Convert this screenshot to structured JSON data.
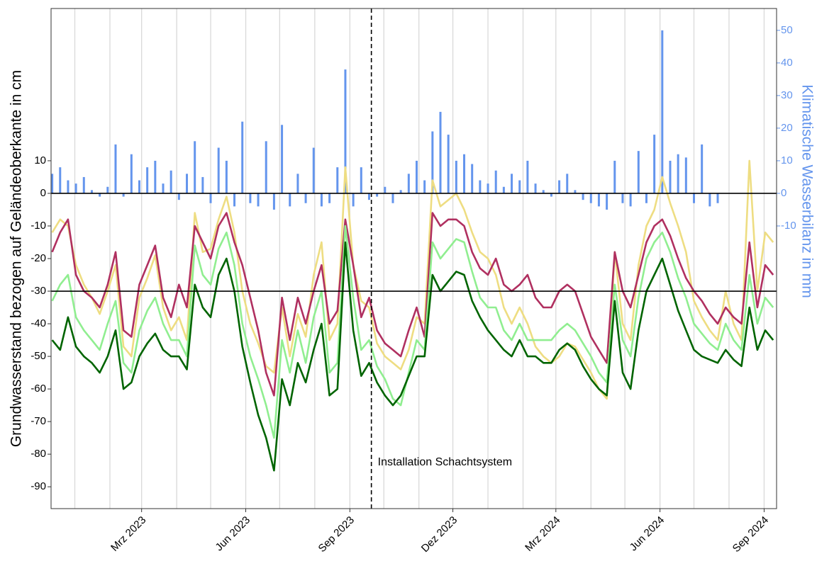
{
  "chart_data": {
    "type": "line",
    "ylabel": "Grundwasserstand bezogen auf Geländeoberkante in cm",
    "y2label": "Klimatische Wasserbilanz in mm",
    "xlim": [
      "2022-12-11",
      "2024-09-12"
    ],
    "ylim": [
      -96.7,
      56.7
    ],
    "y2lim": [
      -96.7,
      56.7
    ],
    "yticks": [
      -90,
      -80,
      -70,
      -60,
      -50,
      -40,
      -30,
      -20,
      -10,
      0,
      10
    ],
    "y2ticks": [
      -10,
      0,
      10,
      20,
      30,
      40,
      50
    ],
    "xticks": [
      {
        "value": "2023-03",
        "label": "Mrz 2023"
      },
      {
        "value": "2023-06",
        "label": "Jun 2023"
      },
      {
        "value": "2023-09",
        "label": "Sep 2023"
      },
      {
        "value": "2023-12",
        "label": "Dez 2023"
      },
      {
        "value": "2024-03",
        "label": "Mrz 2024"
      },
      {
        "value": "2024-06",
        "label": "Jun 2024"
      },
      {
        "value": "2024-09",
        "label": "Sep 2024"
      }
    ],
    "xminor": [
      "2023-01",
      "2023-02",
      "2023-04",
      "2023-05",
      "2023-07",
      "2023-08",
      "2023-10",
      "2023-11",
      "2024-01",
      "2024-02",
      "2024-04",
      "2024-05",
      "2024-07",
      "2024-08"
    ],
    "grid": true,
    "hlines": [
      0,
      -30
    ],
    "vline": {
      "x": "2023-09-20",
      "label": "Installation Schachtsystem"
    },
    "x": [
      "2022-12-12",
      "2022-12-19",
      "2022-12-26",
      "2023-01-02",
      "2023-01-09",
      "2023-01-16",
      "2023-01-23",
      "2023-01-30",
      "2023-02-06",
      "2023-02-13",
      "2023-02-20",
      "2023-02-27",
      "2023-03-06",
      "2023-03-13",
      "2023-03-20",
      "2023-03-27",
      "2023-04-03",
      "2023-04-10",
      "2023-04-17",
      "2023-04-24",
      "2023-05-01",
      "2023-05-08",
      "2023-05-15",
      "2023-05-22",
      "2023-05-29",
      "2023-06-05",
      "2023-06-12",
      "2023-06-19",
      "2023-06-26",
      "2023-07-03",
      "2023-07-10",
      "2023-07-17",
      "2023-07-24",
      "2023-07-31",
      "2023-08-07",
      "2023-08-14",
      "2023-08-21",
      "2023-08-28",
      "2023-09-04",
      "2023-09-11",
      "2023-09-18",
      "2023-09-25",
      "2023-10-02",
      "2023-10-09",
      "2023-10-16",
      "2023-10-23",
      "2023-10-30",
      "2023-11-06",
      "2023-11-13",
      "2023-11-20",
      "2023-11-27",
      "2023-12-04",
      "2023-12-11",
      "2023-12-18",
      "2023-12-25",
      "2024-01-01",
      "2024-01-08",
      "2024-01-15",
      "2024-01-22",
      "2024-01-29",
      "2024-02-05",
      "2024-02-12",
      "2024-02-19",
      "2024-02-26",
      "2024-03-04",
      "2024-03-11",
      "2024-03-18",
      "2024-03-25",
      "2024-04-01",
      "2024-04-08",
      "2024-04-15",
      "2024-04-22",
      "2024-04-29",
      "2024-05-06",
      "2024-05-13",
      "2024-05-20",
      "2024-05-27",
      "2024-06-03",
      "2024-06-10",
      "2024-06-17",
      "2024-06-24",
      "2024-07-01",
      "2024-07-08",
      "2024-07-15",
      "2024-07-22",
      "2024-07-29",
      "2024-08-05",
      "2024-08-12",
      "2024-08-19",
      "2024-08-26",
      "2024-09-02",
      "2024-09-09"
    ],
    "series": [
      {
        "color": "#EEDD82",
        "values": [
          -12,
          -8,
          -10,
          -22,
          -28,
          -32,
          -37,
          -30,
          -22,
          -47,
          -50,
          -32,
          -26,
          -19,
          -35,
          -42,
          -38,
          -45,
          -6,
          -18,
          -17,
          -8,
          -1,
          -12,
          -30,
          -40,
          -46,
          -53,
          -55,
          -35,
          -50,
          -37,
          -44,
          -25,
          -15,
          -45,
          -40,
          8,
          -22,
          -33,
          -35,
          -46,
          -50,
          -52,
          -54,
          -48,
          -38,
          -40,
          4,
          -4,
          -2,
          0,
          -5,
          -12,
          -18,
          -20,
          -25,
          -35,
          -40,
          -35,
          -40,
          -47,
          -50,
          -52,
          -50,
          -46,
          -47,
          -51,
          -55,
          -60,
          -63,
          -18,
          -40,
          -45,
          -22,
          -10,
          -5,
          5,
          -3,
          -10,
          -18,
          -33,
          -38,
          -42,
          -45,
          -30,
          -40,
          -45,
          10,
          -30,
          -12,
          -15
        ]
      },
      {
        "color": "#B03060",
        "values": [
          -18,
          -12,
          -8,
          -25,
          -30,
          -32,
          -35,
          -28,
          -18,
          -42,
          -44,
          -28,
          -22,
          -16,
          -32,
          -38,
          -28,
          -35,
          -10,
          -15,
          -20,
          -10,
          -6,
          -15,
          -22,
          -32,
          -42,
          -55,
          -62,
          -32,
          -45,
          -32,
          -40,
          -30,
          -22,
          -40,
          -36,
          -8,
          -22,
          -38,
          -32,
          -42,
          -46,
          -48,
          -50,
          -42,
          -35,
          -44,
          -6,
          -10,
          -8,
          -8,
          -10,
          -18,
          -23,
          -25,
          -20,
          -28,
          -30,
          -28,
          -25,
          -32,
          -35,
          -35,
          -30,
          -28,
          -30,
          -37,
          -44,
          -48,
          -52,
          -18,
          -30,
          -35,
          -25,
          -15,
          -10,
          -8,
          -13,
          -20,
          -26,
          -30,
          -33,
          -37,
          -40,
          -35,
          -38,
          -40,
          -15,
          -35,
          -22,
          -25
        ]
      },
      {
        "color": "#90EE90",
        "values": [
          -33,
          -28,
          -25,
          -38,
          -42,
          -45,
          -48,
          -40,
          -33,
          -52,
          -55,
          -42,
          -36,
          -32,
          -40,
          -45,
          -45,
          -50,
          -16,
          -25,
          -28,
          -17,
          -12,
          -22,
          -40,
          -50,
          -57,
          -65,
          -75,
          -45,
          -55,
          -42,
          -52,
          -38,
          -30,
          -55,
          -52,
          -10,
          -32,
          -48,
          -45,
          -53,
          -57,
          -63,
          -65,
          -55,
          -45,
          -48,
          -15,
          -20,
          -17,
          -14,
          -15,
          -24,
          -32,
          -35,
          -35,
          -42,
          -45,
          -40,
          -45,
          -45,
          -45,
          -45,
          -42,
          -40,
          -42,
          -46,
          -50,
          -55,
          -58,
          -28,
          -45,
          -50,
          -32,
          -20,
          -15,
          -12,
          -18,
          -26,
          -32,
          -40,
          -43,
          -46,
          -48,
          -40,
          -45,
          -48,
          -25,
          -40,
          -32,
          -35
        ]
      },
      {
        "color": "#006400",
        "values": [
          -45,
          -48,
          -38,
          -47,
          -50,
          -52,
          -55,
          -50,
          -42,
          -60,
          -58,
          -50,
          -46,
          -43,
          -48,
          -50,
          -50,
          -54,
          -28,
          -35,
          -38,
          -25,
          -20,
          -30,
          -47,
          -58,
          -68,
          -75,
          -85,
          -57,
          -65,
          -52,
          -58,
          -48,
          -40,
          -62,
          -60,
          -15,
          -42,
          -56,
          -52,
          -58,
          -62,
          -65,
          -62,
          -56,
          -50,
          -50,
          -25,
          -30,
          -27,
          -24,
          -25,
          -33,
          -38,
          -42,
          -45,
          -48,
          -50,
          -45,
          -50,
          -50,
          -52,
          -52,
          -48,
          -46,
          -48,
          -53,
          -57,
          -60,
          -62,
          -33,
          -55,
          -60,
          -42,
          -30,
          -25,
          -20,
          -28,
          -36,
          -42,
          -48,
          -50,
          -51,
          -52,
          -48,
          -51,
          -53,
          -35,
          -48,
          -42,
          -45
        ]
      },
      {
        "type": "bar",
        "axis": "y2",
        "color": "#6495ED",
        "values": [
          6,
          8,
          4,
          3,
          5,
          1,
          -1,
          2,
          15,
          -1,
          12,
          4,
          8,
          10,
          3,
          7,
          -2,
          6,
          16,
          5,
          -3,
          14,
          10,
          -4,
          22,
          -3,
          -4,
          16,
          -5,
          21,
          -4,
          6,
          -3,
          14,
          -4,
          -3,
          8,
          38,
          -4,
          8,
          -2,
          -1,
          2,
          -3,
          1,
          6,
          10,
          4,
          19,
          25,
          18,
          10,
          12,
          9,
          4,
          3,
          7,
          2,
          6,
          4,
          10,
          3,
          1,
          -1,
          4,
          6,
          1,
          -2,
          -3,
          -4,
          -5,
          10,
          -3,
          -4,
          13,
          -3,
          18,
          50,
          10,
          12,
          11,
          -3,
          15,
          -4,
          -3,
          null,
          null,
          null,
          null,
          null,
          null,
          null
        ]
      }
    ]
  }
}
